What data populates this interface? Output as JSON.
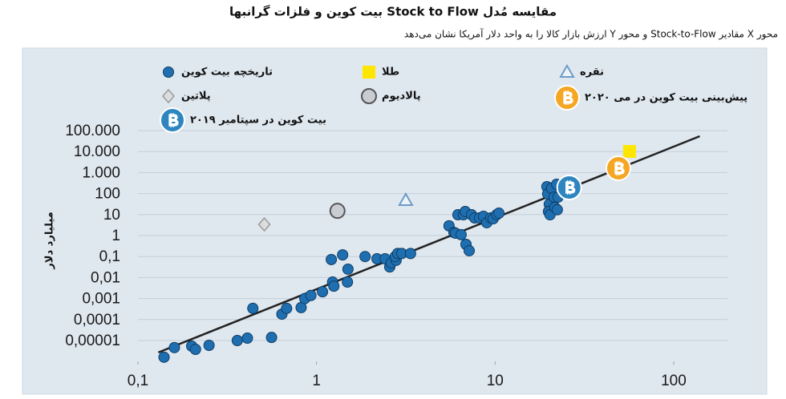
{
  "chart_data": {
    "type": "scatter",
    "title": "مقایسه مُدل Stock to Flow بیت کوین و فلزات گرانبها",
    "subtitle": "محور X مقادیر Stock-to-Flow و محور Y ارزش بازار کالا را به واحد دلار آمریکا نشان می‌دهد",
    "y_label": "میلیارد دلار",
    "x_scale": "log",
    "y_scale": "log",
    "grid": true,
    "xlim": [
      0.1,
      200
    ],
    "ylim": [
      1e-06,
      300000
    ],
    "xticks": [
      {
        "value": 0.1,
        "label": "0,1"
      },
      1,
      10,
      100
    ],
    "yticks": [
      {
        "value": 100000,
        "label": "100.000"
      },
      {
        "value": 10000,
        "label": "10.000"
      },
      {
        "value": 1000,
        "label": "1.000"
      },
      100,
      10,
      1,
      {
        "value": 0.1,
        "label": "0,1"
      },
      {
        "value": 0.01,
        "label": "0,01"
      },
      {
        "value": 0.001,
        "label": "0,001"
      },
      {
        "value": 0.0001,
        "label": "0,0001"
      },
      {
        "value": 1e-05,
        "label": "0,00001"
      }
    ],
    "trend_line": {
      "color": "#222222",
      "x": [
        0.13,
        140
      ],
      "values": [
        2.7e-06,
        54000
      ]
    },
    "series": [
      {
        "name": "تاریخچه بیت کوین",
        "color": "#1f6fb0",
        "marker": "circle",
        "x": [
          0.14,
          0.16,
          0.2,
          0.21,
          0.25,
          0.36,
          0.41,
          0.44,
          0.56,
          0.64,
          0.68,
          0.82,
          0.86,
          0.93,
          1.08,
          1.21,
          1.23,
          1.25,
          1.4,
          1.5,
          1.49,
          1.87,
          2.18,
          2.42,
          2.57,
          2.62,
          2.79,
          2.76,
          2.85,
          3.0,
          3.36,
          5.52,
          5.88,
          6.0,
          6.19,
          6.45,
          6.65,
          6.8,
          6.87,
          7.16,
          7.38,
          7.69,
          8.18,
          8.61,
          8.98,
          9.46,
          9.75,
          10.2,
          10.5,
          19.5,
          19.7,
          20.1,
          19.9,
          20.3,
          20.7,
          21.4,
          21.6,
          22.1,
          22.5,
          22.3
        ],
        "values": [
          1.6e-06,
          4.6e-06,
          5.4e-06,
          3.8e-06,
          5.9e-06,
          1e-05,
          1.3e-05,
          0.00034,
          1.4e-05,
          0.00018,
          0.00034,
          0.00037,
          0.001,
          0.0014,
          0.0021,
          0.072,
          0.0061,
          0.0039,
          0.12,
          0.025,
          0.0061,
          0.1,
          0.078,
          0.078,
          0.032,
          0.05,
          0.066,
          0.1,
          0.14,
          0.14,
          0.14,
          2.9,
          1.4,
          1.3,
          9.8,
          1.1,
          9.8,
          14,
          0.38,
          0.19,
          9.8,
          6.9,
          6.9,
          8.2,
          4.1,
          6.9,
          6.3,
          9.8,
          11.7,
          213,
          97,
          31,
          14,
          9.8,
          179,
          68,
          22,
          277,
          68,
          17
        ]
      },
      {
        "name": "طلا",
        "color": "#ffe600",
        "marker": "square",
        "x": [
          56.6
        ],
        "values": [
          10200
        ]
      },
      {
        "name": "نقره",
        "color": "#6a9cc7",
        "marker": "triangle",
        "x": [
          3.16
        ],
        "values": [
          48
        ]
      },
      {
        "name": "پلاتین",
        "color": "#dddddd",
        "marker": "diamond",
        "x": [
          0.51
        ],
        "values": [
          3.4
        ]
      },
      {
        "name": "پالادیوم",
        "color": "#c9cdd3",
        "marker": "ring",
        "x": [
          1.31
        ],
        "values": [
          15
        ]
      },
      {
        "name": "پیش‌بینی بیت کوین در می ۲۰۲۰",
        "color": "#f5a623",
        "marker": "bitcoin",
        "x": [
          49
        ],
        "values": [
          1600
        ]
      },
      {
        "name": "بیت کوین در سپتامبر ۲۰۱۹",
        "color": "#2e86c1",
        "marker": "bitcoin",
        "x": [
          26
        ],
        "values": [
          195
        ]
      }
    ]
  }
}
